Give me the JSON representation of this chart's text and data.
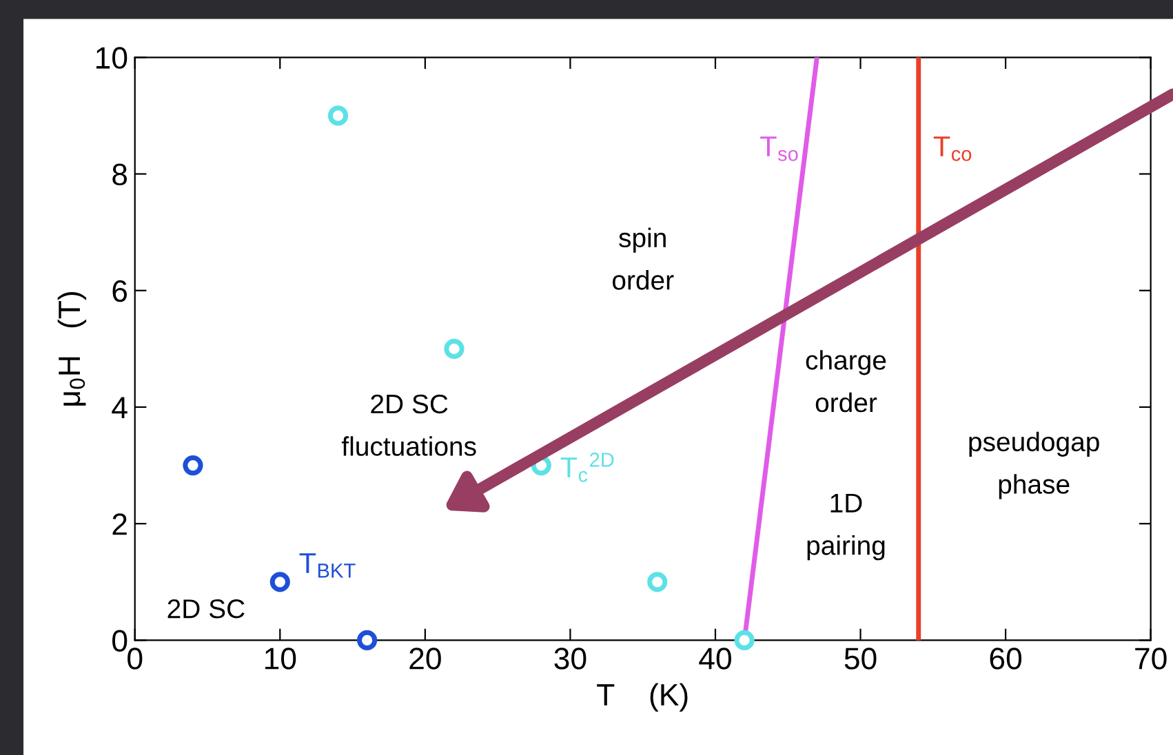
{
  "chart_data": {
    "type": "scatter",
    "xlabel": "T    (K)",
    "ylabel": "μ$_{0}$H   (T)",
    "xlim": [
      0,
      70
    ],
    "ylim": [
      0,
      10
    ],
    "xticks": [
      0,
      10,
      20,
      30,
      40,
      50,
      60,
      70
    ],
    "yticks": [
      0,
      2,
      4,
      6,
      8,
      10
    ],
    "grid": false,
    "legend": false,
    "series": [
      {
        "name": "T$_{c}$$^{2D}$",
        "color": "#5ce1e6",
        "marker": "circle",
        "x": [
          14,
          22,
          28,
          36,
          42
        ],
        "values": [
          9,
          5,
          3,
          1,
          0
        ]
      },
      {
        "name": "T$_{BKT}$",
        "color": "#1e4fd8",
        "marker": "circle",
        "x": [
          4,
          10,
          16
        ],
        "values": [
          3,
          1,
          0
        ]
      },
      {
        "name": "T$_{so}$",
        "type": "line",
        "color": "#e05ce8",
        "x": [
          42,
          47
        ],
        "values": [
          0,
          10
        ]
      },
      {
        "name": "T$_{co}$",
        "type": "line",
        "color": "#e8402a",
        "x": [
          54,
          54
        ],
        "values": [
          0,
          10
        ]
      }
    ],
    "annotations": [
      "spin\norder",
      "charge\norder",
      "pseudogap\nphase",
      "2D SC\nfluctuations",
      "1D\npairing",
      "2D SC"
    ]
  }
}
